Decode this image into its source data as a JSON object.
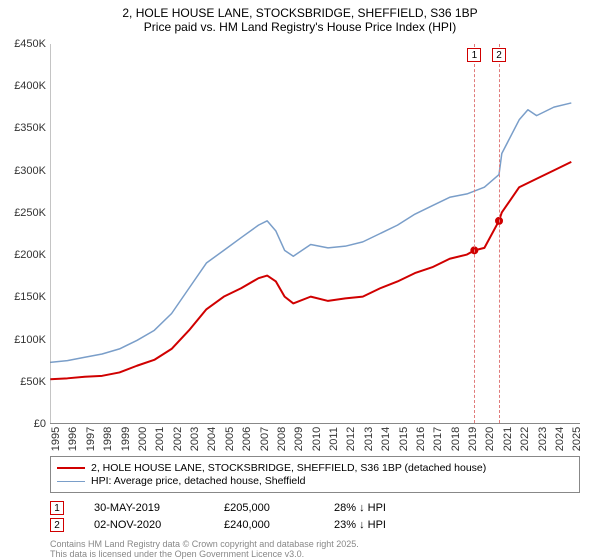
{
  "title": {
    "line1": "2, HOLE HOUSE LANE, STOCKSBRIDGE, SHEFFIELD, S36 1BP",
    "line2": "Price paid vs. HM Land Registry's House Price Index (HPI)"
  },
  "chart": {
    "type": "line",
    "background_color": "#ffffff",
    "grid_color": "#e0e0e0",
    "axis_color": "#888888",
    "xlim": [
      1995,
      2025.5
    ],
    "ylim": [
      0,
      450
    ],
    "yticks": [
      0,
      50,
      100,
      150,
      200,
      250,
      300,
      350,
      400,
      450
    ],
    "ytick_labels": [
      "£0",
      "£50K",
      "£100K",
      "£150K",
      "£200K",
      "£250K",
      "£300K",
      "£350K",
      "£400K",
      "£450K"
    ],
    "xticks": [
      1995,
      1996,
      1997,
      1998,
      1999,
      2000,
      2001,
      2002,
      2003,
      2004,
      2005,
      2006,
      2007,
      2008,
      2009,
      2010,
      2011,
      2012,
      2013,
      2014,
      2015,
      2016,
      2017,
      2018,
      2019,
      2020,
      2021,
      2022,
      2023,
      2024,
      2025
    ],
    "label_fontsize": 11,
    "series": [
      {
        "name": "price_paid",
        "label": "2, HOLE HOUSE LANE, STOCKSBRIDGE, SHEFFIELD, S36 1BP (detached house)",
        "color": "#d00000",
        "line_width": 2,
        "data": [
          [
            1995,
            52
          ],
          [
            1996,
            53
          ],
          [
            1997,
            55
          ],
          [
            1998,
            56
          ],
          [
            1999,
            60
          ],
          [
            2000,
            68
          ],
          [
            2001,
            75
          ],
          [
            2002,
            88
          ],
          [
            2003,
            110
          ],
          [
            2004,
            135
          ],
          [
            2005,
            150
          ],
          [
            2006,
            160
          ],
          [
            2007,
            172
          ],
          [
            2007.5,
            175
          ],
          [
            2008,
            168
          ],
          [
            2008.5,
            150
          ],
          [
            2009,
            142
          ],
          [
            2010,
            150
          ],
          [
            2011,
            145
          ],
          [
            2012,
            148
          ],
          [
            2013,
            150
          ],
          [
            2014,
            160
          ],
          [
            2015,
            168
          ],
          [
            2016,
            178
          ],
          [
            2017,
            185
          ],
          [
            2018,
            195
          ],
          [
            2019,
            200
          ],
          [
            2019.42,
            205
          ],
          [
            2020,
            208
          ],
          [
            2020.84,
            240
          ],
          [
            2021,
            250
          ],
          [
            2022,
            280
          ],
          [
            2023,
            290
          ],
          [
            2024,
            300
          ],
          [
            2025,
            310
          ]
        ]
      },
      {
        "name": "hpi",
        "label": "HPI: Average price, detached house, Sheffield",
        "color": "#7a9ec9",
        "line_width": 1.5,
        "data": [
          [
            1995,
            72
          ],
          [
            1996,
            74
          ],
          [
            1997,
            78
          ],
          [
            1998,
            82
          ],
          [
            1999,
            88
          ],
          [
            2000,
            98
          ],
          [
            2001,
            110
          ],
          [
            2002,
            130
          ],
          [
            2003,
            160
          ],
          [
            2004,
            190
          ],
          [
            2005,
            205
          ],
          [
            2006,
            220
          ],
          [
            2007,
            235
          ],
          [
            2007.5,
            240
          ],
          [
            2008,
            228
          ],
          [
            2008.5,
            205
          ],
          [
            2009,
            198
          ],
          [
            2010,
            212
          ],
          [
            2011,
            208
          ],
          [
            2012,
            210
          ],
          [
            2013,
            215
          ],
          [
            2014,
            225
          ],
          [
            2015,
            235
          ],
          [
            2016,
            248
          ],
          [
            2017,
            258
          ],
          [
            2018,
            268
          ],
          [
            2019,
            272
          ],
          [
            2020,
            280
          ],
          [
            2020.84,
            295
          ],
          [
            2021,
            320
          ],
          [
            2022,
            360
          ],
          [
            2022.5,
            372
          ],
          [
            2023,
            365
          ],
          [
            2024,
            375
          ],
          [
            2025,
            380
          ]
        ]
      }
    ],
    "sale_markers": [
      {
        "id": "1",
        "x": 2019.42,
        "y": 205,
        "color": "#d00000"
      },
      {
        "id": "2",
        "x": 2020.84,
        "y": 240,
        "color": "#d00000"
      }
    ],
    "vlines": [
      {
        "x": 2019.42,
        "label": "1",
        "color": "#e07b7b"
      },
      {
        "x": 2020.84,
        "label": "2",
        "color": "#e07b7b"
      }
    ]
  },
  "legend": {
    "items": [
      {
        "color": "#d00000",
        "width": 2,
        "label": "2, HOLE HOUSE LANE, STOCKSBRIDGE, SHEFFIELD, S36 1BP (detached house)"
      },
      {
        "color": "#7a9ec9",
        "width": 1.5,
        "label": "HPI: Average price, detached house, Sheffield"
      }
    ]
  },
  "sales": [
    {
      "marker": "1",
      "date": "30-MAY-2019",
      "price": "£205,000",
      "hpi_diff": "28% ↓ HPI"
    },
    {
      "marker": "2",
      "date": "02-NOV-2020",
      "price": "£240,000",
      "hpi_diff": "23% ↓ HPI"
    }
  ],
  "footer": {
    "line1": "Contains HM Land Registry data © Crown copyright and database right 2025.",
    "line2": "This data is licensed under the Open Government Licence v3.0."
  }
}
